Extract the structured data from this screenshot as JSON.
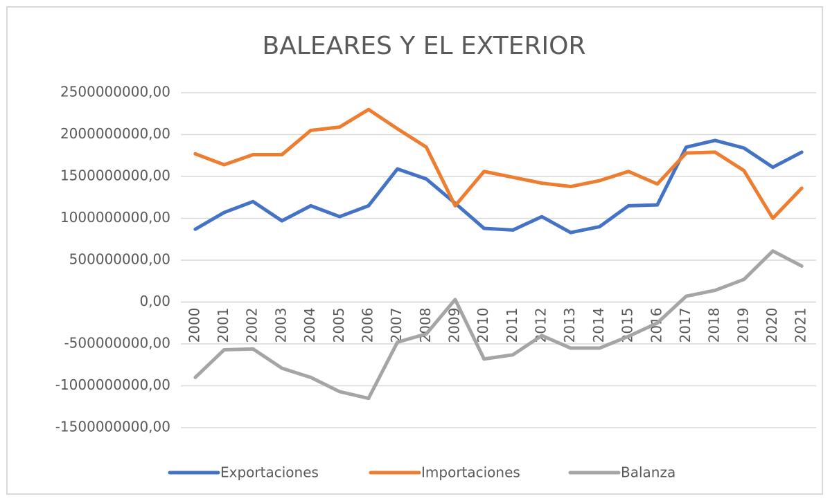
{
  "chart_data": {
    "type": "line",
    "title": "BALEARES Y EL EXTERIOR",
    "categories": [
      "2000",
      "2001",
      "2002",
      "2003",
      "2004",
      "2005",
      "2006",
      "2007",
      "2008",
      "2009",
      "2010",
      "2011",
      "2012",
      "2013",
      "2014",
      "2015",
      "2016",
      "2017",
      "2018",
      "2019",
      "2020",
      "2021"
    ],
    "series": [
      {
        "name": "Exportaciones",
        "color": "#4472c4",
        "values": [
          870000000,
          1070000000,
          1200000000,
          970000000,
          1150000000,
          1020000000,
          1150000000,
          1590000000,
          1470000000,
          1180000000,
          880000000,
          860000000,
          1020000000,
          830000000,
          900000000,
          1150000000,
          1160000000,
          1850000000,
          1930000000,
          1840000000,
          1610000000,
          1790000000
        ]
      },
      {
        "name": "Importaciones",
        "color": "#ed7d31",
        "values": [
          1770000000,
          1640000000,
          1760000000,
          1760000000,
          2050000000,
          2090000000,
          2300000000,
          2070000000,
          1850000000,
          1150000000,
          1560000000,
          1490000000,
          1420000000,
          1380000000,
          1450000000,
          1560000000,
          1410000000,
          1780000000,
          1790000000,
          1570000000,
          1000000000,
          1360000000
        ]
      },
      {
        "name": "Balanza",
        "color": "#a5a5a5",
        "values": [
          -900000000,
          -570000000,
          -560000000,
          -790000000,
          -900000000,
          -1070000000,
          -1150000000,
          -480000000,
          -380000000,
          30000000,
          -680000000,
          -630000000,
          -400000000,
          -550000000,
          -550000000,
          -410000000,
          -250000000,
          70000000,
          140000000,
          270000000,
          610000000,
          430000000
        ]
      }
    ],
    "ylim": [
      -1500000000,
      2500000000
    ],
    "yticks": [
      {
        "value": -1500000000,
        "label": "-1500000000,00"
      },
      {
        "value": -1000000000,
        "label": "-1000000000,00"
      },
      {
        "value": -500000000,
        "label": "-500000000,00"
      },
      {
        "value": 0,
        "label": "0,00"
      },
      {
        "value": 500000000,
        "label": "500000000,00"
      },
      {
        "value": 1000000000,
        "label": "1000000000,00"
      },
      {
        "value": 1500000000,
        "label": "1500000000,00"
      },
      {
        "value": 2000000000,
        "label": "2000000000,00"
      },
      {
        "value": 2500000000,
        "label": "2500000000,00"
      }
    ],
    "grid": true,
    "legend": "bottom"
  }
}
